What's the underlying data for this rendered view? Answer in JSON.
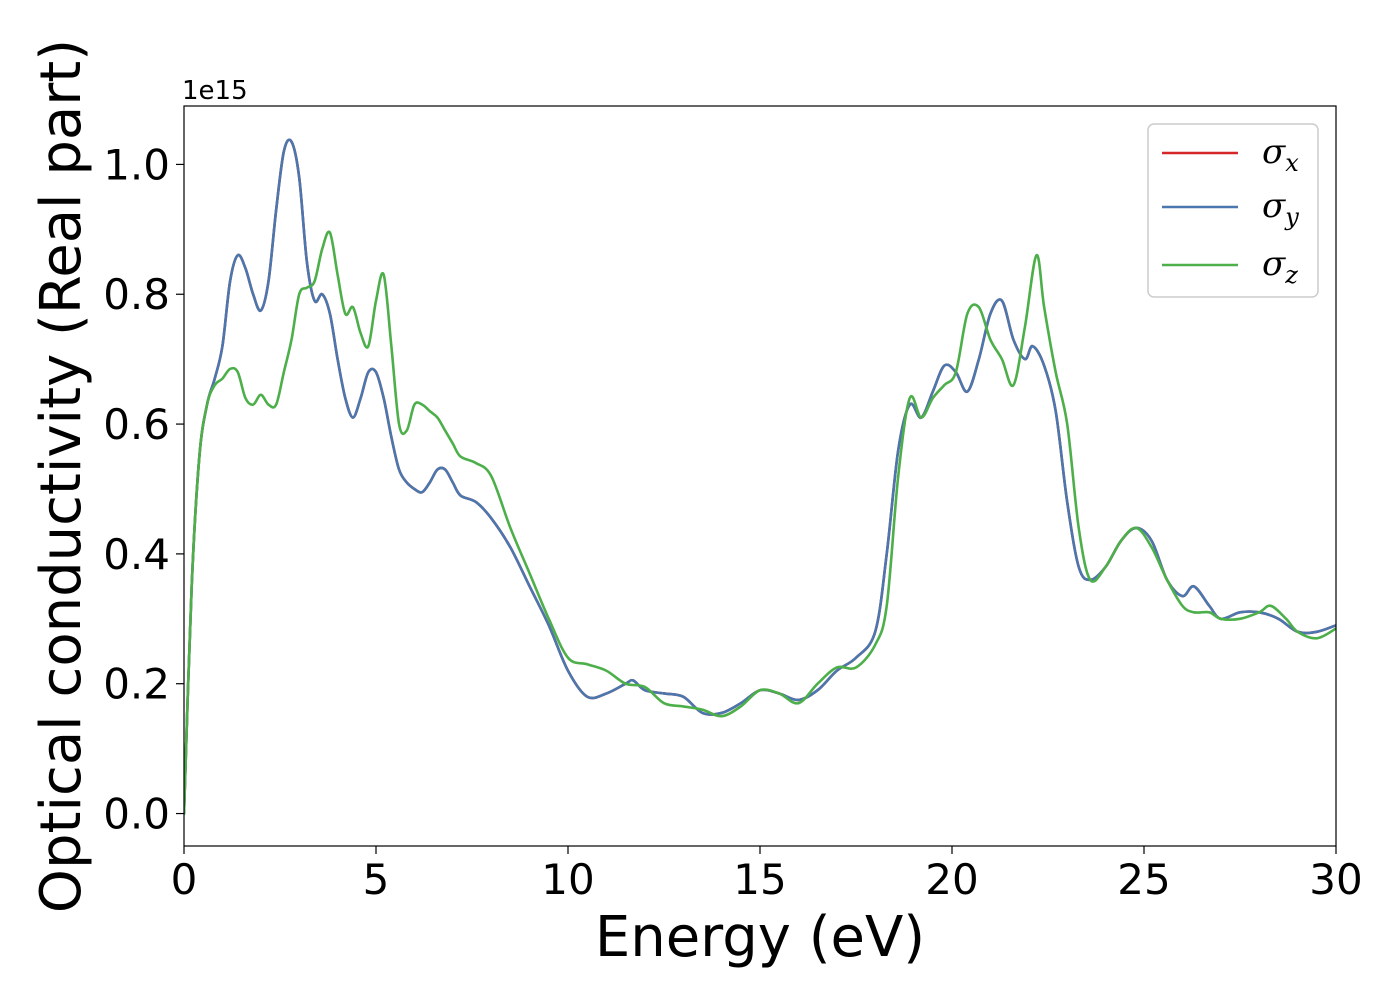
{
  "chart_data": {
    "type": "line",
    "title": "",
    "xlabel": "Energy (eV)",
    "ylabel": "Optical conductivity (Real part)",
    "y_offset_label": "1e15",
    "xlim": [
      0,
      30
    ],
    "ylim": [
      -0.05,
      1.09
    ],
    "x_ticks": [
      0,
      5,
      10,
      15,
      20,
      25,
      30
    ],
    "x_tick_labels": [
      "0",
      "5",
      "10",
      "15",
      "20",
      "25",
      "30"
    ],
    "y_ticks": [
      0.0,
      0.2,
      0.4,
      0.6,
      0.8,
      1.0
    ],
    "y_tick_labels": [
      "0.0",
      "0.2",
      "0.4",
      "0.6",
      "0.8",
      "1.0"
    ],
    "grid": false,
    "legend_position": "top-right",
    "series": [
      {
        "name": "σx",
        "symbol": "σ",
        "subscript": "x",
        "color": "#d62728",
        "x": [
          0,
          0.2,
          0.4,
          0.6,
          0.8,
          1.0,
          1.2,
          1.4,
          1.6,
          1.8,
          2.0,
          2.2,
          2.4,
          2.6,
          2.8,
          3.0,
          3.2,
          3.4,
          3.6,
          3.8,
          4.0,
          4.2,
          4.4,
          4.6,
          4.8,
          5.0,
          5.2,
          5.4,
          5.6,
          5.8,
          6.0,
          6.2,
          6.4,
          6.6,
          6.8,
          7.0,
          7.2,
          7.6,
          8.0,
          8.5,
          9.0,
          9.5,
          10.0,
          10.5,
          11.0,
          11.5,
          11.7,
          12.0,
          12.5,
          13.0,
          13.5,
          14.0,
          14.5,
          15.0,
          15.5,
          16.0,
          16.5,
          17.0,
          17.5,
          18.0,
          18.3,
          18.6,
          18.9,
          19.2,
          19.5,
          19.8,
          20.1,
          20.4,
          20.7,
          21.0,
          21.3,
          21.6,
          21.9,
          22.1,
          22.4,
          22.7,
          23.0,
          23.3,
          23.6,
          24.0,
          24.4,
          24.8,
          25.2,
          25.6,
          26.0,
          26.3,
          26.7,
          27.0,
          27.5,
          28.0,
          28.5,
          29.0,
          29.5,
          30.0
        ],
        "y": [
          0.0,
          0.35,
          0.55,
          0.63,
          0.67,
          0.72,
          0.82,
          0.86,
          0.84,
          0.8,
          0.775,
          0.82,
          0.93,
          1.02,
          1.035,
          0.98,
          0.85,
          0.79,
          0.8,
          0.77,
          0.7,
          0.64,
          0.61,
          0.64,
          0.68,
          0.68,
          0.64,
          0.58,
          0.53,
          0.51,
          0.5,
          0.495,
          0.51,
          0.53,
          0.53,
          0.51,
          0.49,
          0.48,
          0.455,
          0.41,
          0.35,
          0.29,
          0.22,
          0.18,
          0.185,
          0.2,
          0.205,
          0.19,
          0.185,
          0.18,
          0.155,
          0.155,
          0.17,
          0.19,
          0.185,
          0.175,
          0.19,
          0.22,
          0.24,
          0.28,
          0.4,
          0.56,
          0.63,
          0.61,
          0.65,
          0.69,
          0.68,
          0.65,
          0.7,
          0.77,
          0.79,
          0.73,
          0.7,
          0.72,
          0.69,
          0.62,
          0.48,
          0.38,
          0.36,
          0.38,
          0.42,
          0.44,
          0.42,
          0.36,
          0.335,
          0.35,
          0.32,
          0.3,
          0.31,
          0.31,
          0.3,
          0.28,
          0.28,
          0.29
        ]
      },
      {
        "name": "σy",
        "symbol": "σ",
        "subscript": "y",
        "color": "#4a77ad",
        "x": [
          0,
          0.2,
          0.4,
          0.6,
          0.8,
          1.0,
          1.2,
          1.4,
          1.6,
          1.8,
          2.0,
          2.2,
          2.4,
          2.6,
          2.8,
          3.0,
          3.2,
          3.4,
          3.6,
          3.8,
          4.0,
          4.2,
          4.4,
          4.6,
          4.8,
          5.0,
          5.2,
          5.4,
          5.6,
          5.8,
          6.0,
          6.2,
          6.4,
          6.6,
          6.8,
          7.0,
          7.2,
          7.6,
          8.0,
          8.5,
          9.0,
          9.5,
          10.0,
          10.5,
          11.0,
          11.5,
          11.7,
          12.0,
          12.5,
          13.0,
          13.5,
          14.0,
          14.5,
          15.0,
          15.5,
          16.0,
          16.5,
          17.0,
          17.5,
          18.0,
          18.3,
          18.6,
          18.9,
          19.2,
          19.5,
          19.8,
          20.1,
          20.4,
          20.7,
          21.0,
          21.3,
          21.6,
          21.9,
          22.1,
          22.4,
          22.7,
          23.0,
          23.3,
          23.6,
          24.0,
          24.4,
          24.8,
          25.2,
          25.6,
          26.0,
          26.3,
          26.7,
          27.0,
          27.5,
          28.0,
          28.5,
          29.0,
          29.5,
          30.0
        ],
        "y": [
          0.0,
          0.35,
          0.55,
          0.63,
          0.67,
          0.72,
          0.82,
          0.86,
          0.84,
          0.8,
          0.775,
          0.82,
          0.93,
          1.02,
          1.035,
          0.98,
          0.85,
          0.79,
          0.8,
          0.77,
          0.7,
          0.64,
          0.61,
          0.64,
          0.68,
          0.68,
          0.64,
          0.58,
          0.53,
          0.51,
          0.5,
          0.495,
          0.51,
          0.53,
          0.53,
          0.51,
          0.49,
          0.48,
          0.455,
          0.41,
          0.35,
          0.29,
          0.22,
          0.18,
          0.185,
          0.2,
          0.205,
          0.19,
          0.185,
          0.18,
          0.155,
          0.155,
          0.17,
          0.19,
          0.185,
          0.175,
          0.19,
          0.22,
          0.24,
          0.28,
          0.4,
          0.56,
          0.63,
          0.61,
          0.65,
          0.69,
          0.68,
          0.65,
          0.7,
          0.77,
          0.79,
          0.73,
          0.7,
          0.72,
          0.69,
          0.62,
          0.48,
          0.38,
          0.36,
          0.38,
          0.42,
          0.44,
          0.42,
          0.36,
          0.335,
          0.35,
          0.32,
          0.3,
          0.31,
          0.31,
          0.3,
          0.28,
          0.28,
          0.29
        ]
      },
      {
        "name": "σz",
        "symbol": "σ",
        "subscript": "z",
        "color": "#4daf4a",
        "x": [
          0,
          0.2,
          0.4,
          0.6,
          0.8,
          1.0,
          1.2,
          1.4,
          1.6,
          1.8,
          2.0,
          2.2,
          2.4,
          2.6,
          2.8,
          3.0,
          3.2,
          3.4,
          3.6,
          3.8,
          4.0,
          4.2,
          4.4,
          4.6,
          4.8,
          5.0,
          5.2,
          5.4,
          5.6,
          5.8,
          6.0,
          6.2,
          6.4,
          6.6,
          6.8,
          7.0,
          7.2,
          7.6,
          8.0,
          8.5,
          9.0,
          9.5,
          10.0,
          10.5,
          11.0,
          11.5,
          12.0,
          12.5,
          13.0,
          13.5,
          14.0,
          14.5,
          15.0,
          15.5,
          16.0,
          16.5,
          17.0,
          17.5,
          18.0,
          18.3,
          18.6,
          18.9,
          19.2,
          19.5,
          19.8,
          20.1,
          20.4,
          20.7,
          21.0,
          21.3,
          21.6,
          21.9,
          22.2,
          22.4,
          22.7,
          23.0,
          23.3,
          23.6,
          24.0,
          24.4,
          24.8,
          25.2,
          25.6,
          26.0,
          26.3,
          26.7,
          27.0,
          27.5,
          28.0,
          28.3,
          28.7,
          29.0,
          29.5,
          30.0
        ],
        "y": [
          0.0,
          0.35,
          0.55,
          0.63,
          0.66,
          0.67,
          0.685,
          0.68,
          0.64,
          0.63,
          0.645,
          0.63,
          0.63,
          0.68,
          0.73,
          0.8,
          0.81,
          0.82,
          0.87,
          0.895,
          0.83,
          0.77,
          0.78,
          0.74,
          0.72,
          0.79,
          0.83,
          0.72,
          0.6,
          0.59,
          0.63,
          0.63,
          0.62,
          0.61,
          0.59,
          0.57,
          0.55,
          0.54,
          0.52,
          0.44,
          0.37,
          0.3,
          0.24,
          0.23,
          0.22,
          0.2,
          0.195,
          0.17,
          0.165,
          0.16,
          0.15,
          0.165,
          0.19,
          0.185,
          0.17,
          0.2,
          0.225,
          0.225,
          0.26,
          0.32,
          0.52,
          0.64,
          0.61,
          0.64,
          0.66,
          0.68,
          0.77,
          0.78,
          0.73,
          0.7,
          0.66,
          0.75,
          0.86,
          0.78,
          0.68,
          0.6,
          0.44,
          0.36,
          0.38,
          0.42,
          0.44,
          0.41,
          0.36,
          0.32,
          0.31,
          0.31,
          0.3,
          0.3,
          0.31,
          0.32,
          0.3,
          0.28,
          0.27,
          0.285
        ]
      }
    ]
  }
}
